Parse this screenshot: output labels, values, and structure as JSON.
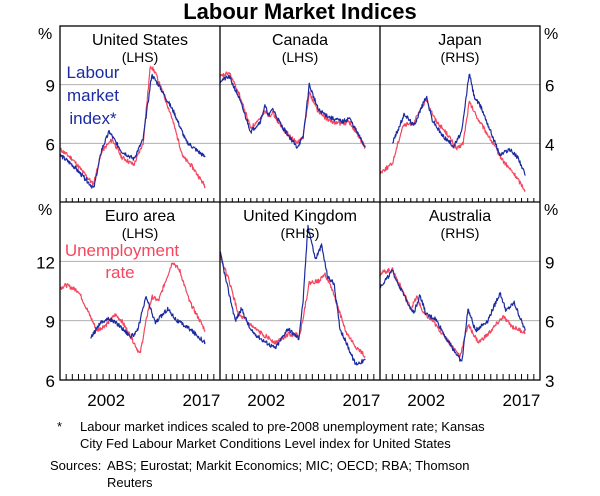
{
  "title": "Labour Market Indices",
  "footnote": {
    "marker": "*",
    "text_line1": "Labour market indices scaled to pre-2008 unemployment rate; Kansas",
    "text_line2": "City Fed Labour Market Conditions Level index for United States"
  },
  "sources": {
    "label": "Sources:",
    "line1": "ABS; Eurostat; Markit Economics; MIC; OECD; RBA; Thomson",
    "line2": "Reuters"
  },
  "colors": {
    "index": "#1c2ba0",
    "unemployment": "#f4475f",
    "grid": "#b0b0b0"
  },
  "chart_data": {
    "type": "line",
    "unit_label": "%",
    "x_tick_labels": [
      "2002",
      "2017"
    ],
    "xlim": [
      1995,
      2021
    ],
    "rows": [
      {
        "lhs_ylim": [
          3,
          12
        ],
        "lhs_ticks": [
          "9",
          "6"
        ],
        "rhs_ylim": [
          2,
          8
        ],
        "rhs_ticks": [
          "6",
          "4"
        ]
      },
      {
        "lhs_ylim": [
          6,
          15
        ],
        "lhs_ticks": [
          "12",
          "9",
          "6"
        ],
        "rhs_ylim": [
          3,
          12
        ],
        "rhs_ticks": [
          "9",
          "6",
          "3"
        ]
      }
    ],
    "annotations": {
      "index": [
        "Labour",
        "market",
        "index*"
      ],
      "unemployment": [
        "Unemployment",
        "rate"
      ]
    },
    "panels": [
      {
        "name": "United States",
        "axis": "(LHS)",
        "row": 0,
        "col": 0,
        "unemployment": [
          [
            1995,
            5.7
          ],
          [
            1997,
            5.2
          ],
          [
            2000.4,
            3.9
          ],
          [
            2001.8,
            5.6
          ],
          [
            2003.5,
            6.2
          ],
          [
            2005,
            5.3
          ],
          [
            2007,
            4.9
          ],
          [
            2008.5,
            6.0
          ],
          [
            2009.7,
            10.0
          ],
          [
            2010.5,
            9.6
          ],
          [
            2013,
            7.5
          ],
          [
            2015,
            5.3
          ],
          [
            2016.5,
            4.8
          ],
          [
            2018.6,
            3.8
          ]
        ],
        "index": [
          [
            1995,
            5.4
          ],
          [
            1997,
            4.9
          ],
          [
            2000.5,
            3.7
          ],
          [
            2001.8,
            5.7
          ],
          [
            2003,
            6.6
          ],
          [
            2005,
            5.6
          ],
          [
            2007,
            5.2
          ],
          [
            2008.5,
            6.2
          ],
          [
            2009.9,
            9.5
          ],
          [
            2011,
            9.0
          ],
          [
            2013.5,
            7.6
          ],
          [
            2015.5,
            6.1
          ],
          [
            2017,
            5.7
          ],
          [
            2018.6,
            5.3
          ]
        ]
      },
      {
        "name": "Canada",
        "axis": "(LHS)",
        "row": 0,
        "col": 1,
        "unemployment": [
          [
            1995,
            9.4
          ],
          [
            1996.5,
            9.6
          ],
          [
            1998,
            8.6
          ],
          [
            2000,
            6.8
          ],
          [
            2001.5,
            7.2
          ],
          [
            2002.3,
            7.7
          ],
          [
            2003,
            7.4
          ],
          [
            2003.5,
            7.6
          ],
          [
            2005,
            6.8
          ],
          [
            2007.5,
            6.0
          ],
          [
            2008.5,
            6.3
          ],
          [
            2009.5,
            8.6
          ],
          [
            2011,
            7.6
          ],
          [
            2013,
            7.1
          ],
          [
            2015,
            7.0
          ],
          [
            2016,
            7.1
          ],
          [
            2018.6,
            5.8
          ]
        ],
        "index": [
          [
            1995,
            9.2
          ],
          [
            1996.5,
            9.4
          ],
          [
            1998,
            8.4
          ],
          [
            2000,
            6.6
          ],
          [
            2001.5,
            7.1
          ],
          [
            2002.3,
            7.9
          ],
          [
            2003,
            7.4
          ],
          [
            2003.5,
            7.8
          ],
          [
            2005,
            6.9
          ],
          [
            2007.5,
            5.8
          ],
          [
            2008.5,
            6.3
          ],
          [
            2009.5,
            9.0
          ],
          [
            2011,
            7.7
          ],
          [
            2013,
            7.3
          ],
          [
            2015,
            7.1
          ],
          [
            2016,
            7.3
          ],
          [
            2018.6,
            5.8
          ]
        ]
      },
      {
        "name": "Japan",
        "axis": "(RHS)",
        "row": 0,
        "col": 2,
        "unemployment": [
          [
            1995,
            3.0
          ],
          [
            1997,
            3.3
          ],
          [
            1998.7,
            4.6
          ],
          [
            2000.5,
            4.7
          ],
          [
            2002.5,
            5.5
          ],
          [
            2004,
            4.8
          ],
          [
            2006,
            4.3
          ],
          [
            2007.5,
            3.8
          ],
          [
            2008.5,
            4.0
          ],
          [
            2009.5,
            5.4
          ],
          [
            2011,
            4.8
          ],
          [
            2012.5,
            4.3
          ],
          [
            2015,
            3.4
          ],
          [
            2017,
            2.9
          ],
          [
            2018.6,
            2.4
          ]
        ],
        "index": [
          [
            1997,
            4.0
          ],
          [
            1999,
            5.0
          ],
          [
            2000.5,
            4.6
          ],
          [
            2002.5,
            5.6
          ],
          [
            2003.5,
            4.8
          ],
          [
            2005,
            4.3
          ],
          [
            2007,
            3.9
          ],
          [
            2008.3,
            4.4
          ],
          [
            2009.5,
            6.4
          ],
          [
            2010.3,
            5.6
          ],
          [
            2011.5,
            5.2
          ],
          [
            2013,
            4.4
          ],
          [
            2014.5,
            3.6
          ],
          [
            2016,
            3.8
          ],
          [
            2017.5,
            3.5
          ],
          [
            2018.6,
            2.9
          ]
        ]
      },
      {
        "name": "Euro area",
        "axis": "(LHS)",
        "row": 1,
        "col": 0,
        "unemployment": [
          [
            1995,
            10.65
          ],
          [
            1996,
            10.8
          ],
          [
            1998,
            10.5
          ],
          [
            1999.5,
            9.5
          ],
          [
            2001,
            8.5
          ],
          [
            2002.5,
            8.8
          ],
          [
            2004,
            9.3
          ],
          [
            2005,
            9.0
          ],
          [
            2006.5,
            8.2
          ],
          [
            2008,
            7.3
          ],
          [
            2009.3,
            9.5
          ],
          [
            2010,
            10.2
          ],
          [
            2011,
            10.0
          ],
          [
            2013.3,
            12.0
          ],
          [
            2014.5,
            11.5
          ],
          [
            2016,
            10.0
          ],
          [
            2018.6,
            8.5
          ]
        ],
        "index": [
          [
            2000,
            8.1
          ],
          [
            2001.5,
            8.9
          ],
          [
            2003,
            9.1
          ],
          [
            2004.5,
            8.8
          ],
          [
            2006.5,
            8.2
          ],
          [
            2007.5,
            8.4
          ],
          [
            2009,
            10.2
          ],
          [
            2010.5,
            8.9
          ],
          [
            2012.5,
            9.6
          ],
          [
            2014,
            9.0
          ],
          [
            2016,
            8.6
          ],
          [
            2018.6,
            7.9
          ]
        ]
      },
      {
        "name": "United Kingdom",
        "axis": "(RHS)",
        "row": 1,
        "col": 1,
        "unemployment": [
          [
            1995,
            9.3
          ],
          [
            1996.5,
            8.0
          ],
          [
            1998,
            6.3
          ],
          [
            2001,
            5.5
          ],
          [
            2004,
            4.9
          ],
          [
            2006,
            5.3
          ],
          [
            2008,
            5.3
          ],
          [
            2009.5,
            7.9
          ],
          [
            2011,
            8.0
          ],
          [
            2012,
            8.4
          ],
          [
            2013.2,
            7.6
          ],
          [
            2015.5,
            5.4
          ],
          [
            2017,
            4.7
          ],
          [
            2018.6,
            4.2
          ]
        ],
        "index": [
          [
            1995,
            9.5
          ],
          [
            1996,
            8.0
          ],
          [
            1997.5,
            6.0
          ],
          [
            1998.5,
            6.6
          ],
          [
            2000,
            5.5
          ],
          [
            2002,
            5.0
          ],
          [
            2004,
            4.6
          ],
          [
            2006,
            5.6
          ],
          [
            2007.8,
            5.1
          ],
          [
            2008.5,
            7.0
          ],
          [
            2009.3,
            10.8
          ],
          [
            2010.5,
            9.1
          ],
          [
            2011.5,
            9.8
          ],
          [
            2012.5,
            8.2
          ],
          [
            2013.5,
            7.9
          ],
          [
            2014.5,
            5.6
          ],
          [
            2015.5,
            4.9
          ],
          [
            2017,
            3.8
          ],
          [
            2018.6,
            4.0
          ]
        ]
      },
      {
        "name": "Australia",
        "axis": "(RHS)",
        "row": 1,
        "col": 2,
        "unemployment": [
          [
            1995,
            8.4
          ],
          [
            1997,
            8.6
          ],
          [
            1999,
            7.3
          ],
          [
            2000,
            6.6
          ],
          [
            2001,
            7.2
          ],
          [
            2002,
            6.4
          ],
          [
            2003.5,
            6.0
          ],
          [
            2006,
            5.0
          ],
          [
            2008,
            4.2
          ],
          [
            2009.3,
            5.8
          ],
          [
            2011,
            4.9
          ],
          [
            2012.5,
            5.3
          ],
          [
            2015,
            6.2
          ],
          [
            2016.5,
            5.7
          ],
          [
            2018.6,
            5.4
          ]
        ],
        "index": [
          [
            1995,
            7.7
          ],
          [
            1997,
            8.5
          ],
          [
            1999,
            7.2
          ],
          [
            2000.5,
            6.4
          ],
          [
            2001.5,
            7.3
          ],
          [
            2002.5,
            6.3
          ],
          [
            2004,
            6.1
          ],
          [
            2006,
            5.0
          ],
          [
            2008.3,
            3.9
          ],
          [
            2009.3,
            6.6
          ],
          [
            2010.5,
            5.5
          ],
          [
            2012.5,
            6.0
          ],
          [
            2014.5,
            7.4
          ],
          [
            2015.5,
            6.5
          ],
          [
            2016.8,
            6.9
          ],
          [
            2018.6,
            5.5
          ]
        ]
      }
    ]
  }
}
